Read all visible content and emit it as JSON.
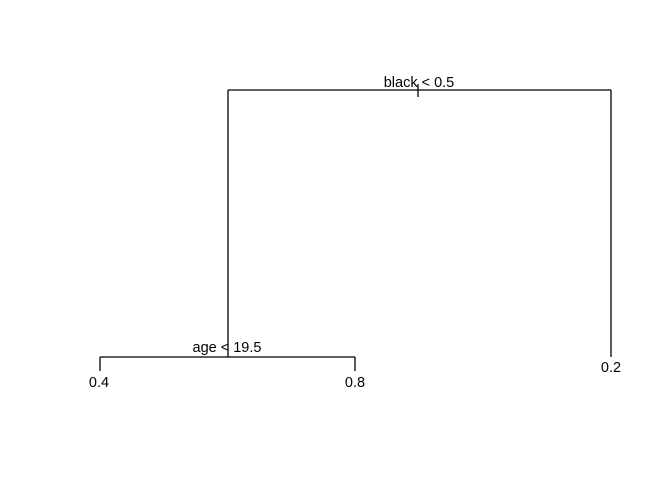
{
  "tree": {
    "root_split": "black < 0.5",
    "left_split": "age < 19.5",
    "leaves": {
      "left_left": "0.4",
      "left_right": "0.8",
      "right": "0.2"
    }
  }
}
